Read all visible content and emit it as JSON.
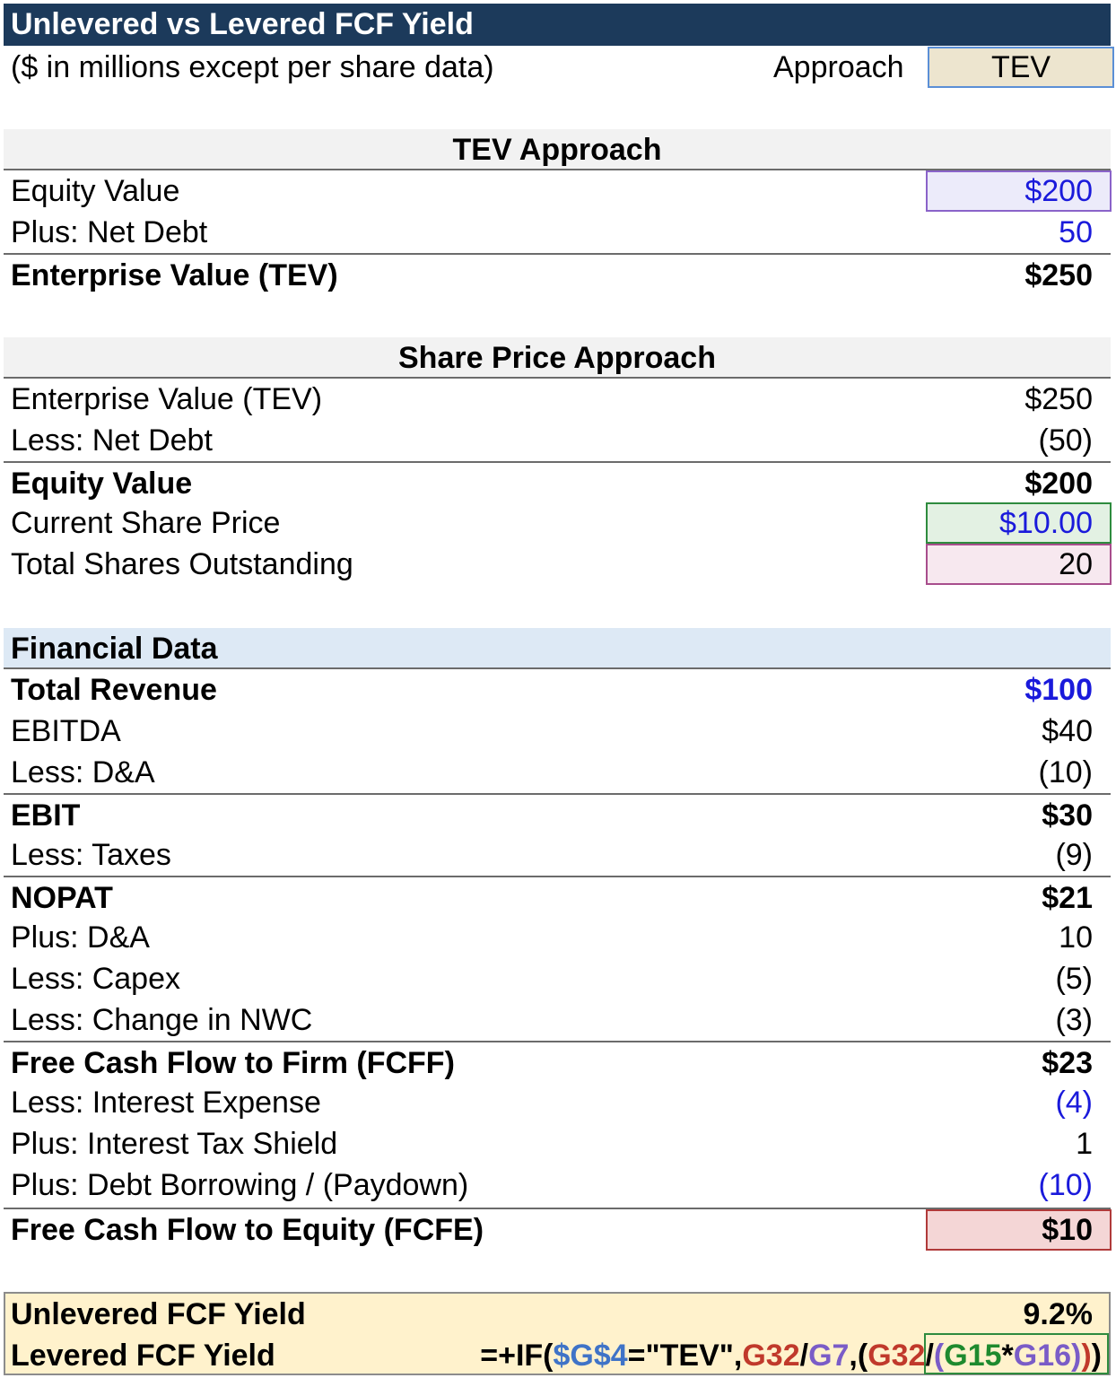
{
  "header": {
    "title": "Unlevered vs Levered FCF Yield",
    "subtitle": "($ in millions except per share data)",
    "approach_label": "Approach",
    "approach_value": "TEV"
  },
  "tev_approach": {
    "title": "TEV Approach",
    "rows": [
      {
        "label": "Equity Value",
        "value": "$200"
      },
      {
        "label": "Plus: Net Debt",
        "value": "50"
      },
      {
        "label": "Enterprise Value (TEV)",
        "value": "$250"
      }
    ]
  },
  "share_price_approach": {
    "title": "Share Price Approach",
    "rows": [
      {
        "label": "Enterprise Value (TEV)",
        "value": "$250"
      },
      {
        "label": "Less: Net Debt",
        "value": "(50)"
      },
      {
        "label": "Equity Value",
        "value": "$200"
      },
      {
        "label": "Current Share Price",
        "value": "$10.00"
      },
      {
        "label": "Total Shares Outstanding",
        "value": "20"
      }
    ]
  },
  "financial_data": {
    "title": "Financial Data",
    "rows": [
      {
        "label": "Total Revenue",
        "value": "$100"
      },
      {
        "label": "EBITDA",
        "value": "$40"
      },
      {
        "label": "Less: D&A",
        "value": "(10)"
      },
      {
        "label": "EBIT",
        "value": "$30"
      },
      {
        "label": "Less: Taxes",
        "value": "(9)"
      },
      {
        "label": "NOPAT",
        "value": "$21"
      },
      {
        "label": "Plus: D&A",
        "value": "10"
      },
      {
        "label": "Less: Capex",
        "value": "(5)"
      },
      {
        "label": "Less: Change in NWC",
        "value": "(3)"
      },
      {
        "label": "Free Cash Flow to Firm (FCFF)",
        "value": "$23"
      },
      {
        "label": "Less: Interest Expense",
        "value": "(4)"
      },
      {
        "label": "Plus: Interest Tax Shield",
        "value": "1"
      },
      {
        "label": "Plus: Debt Borrowing / (Paydown)",
        "value": "(10)"
      },
      {
        "label": "Free Cash Flow to Equity (FCFE)",
        "value": "$10"
      }
    ]
  },
  "yields": {
    "unlevered_label": "Unlevered FCF Yield",
    "unlevered_value": "9.2%",
    "levered_label": "Levered FCF Yield",
    "formula_parts": [
      "=+IF(",
      "$G$4",
      "=\"TEV\",",
      "G32",
      "/",
      "G7",
      ",(",
      "G32",
      "/",
      "(",
      "G15",
      "*",
      "G16",
      ")",
      ")",
      ")"
    ]
  },
  "colors": {
    "title_bar": "#1c3a5b",
    "input_blue": "#1a1adb",
    "approach_fill": "#ede5cf",
    "yield_fill": "#fff2cc",
    "fcfe_fill": "#f4d6d6",
    "fin_header_fill": "#dde9f5"
  }
}
